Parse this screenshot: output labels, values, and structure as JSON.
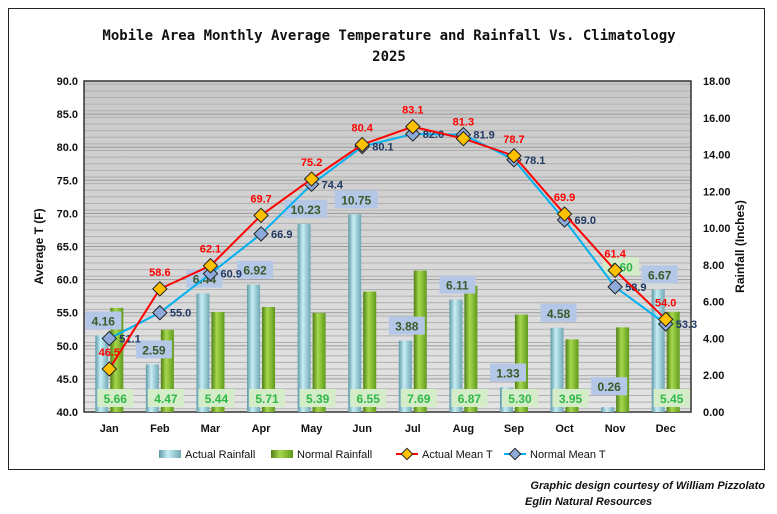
{
  "chart_data": {
    "type": "bar+line",
    "title": "Mobile Area Monthly Average Temperature and Rainfall Vs. Climatology",
    "subtitle": "2025",
    "ylabel": "Average T (F)",
    "y2label": "Rainfall (Inches)",
    "ylim": [
      40,
      90
    ],
    "y2lim": [
      0,
      18
    ],
    "yticks": [
      "40.0",
      "45.0",
      "50.0",
      "55.0",
      "60.0",
      "65.0",
      "70.0",
      "75.0",
      "80.0",
      "85.0",
      "90.0"
    ],
    "y2ticks": [
      "0.00",
      "2.00",
      "4.00",
      "6.00",
      "8.00",
      "10.00",
      "12.00",
      "14.00",
      "16.00",
      "18.00"
    ],
    "categories": [
      "Jan",
      "Feb",
      "Mar",
      "Apr",
      "May",
      "Jun",
      "Jul",
      "Aug",
      "Sep",
      "Oct",
      "Nov",
      "Dec"
    ],
    "grid": true,
    "legend_placement": "bottom",
    "series": [
      {
        "name": "Actual Rainfall",
        "type": "bar",
        "axis": "right",
        "color": "#8fc7d4",
        "values": [
          4.16,
          2.59,
          6.44,
          6.92,
          10.23,
          10.75,
          3.88,
          6.11,
          1.33,
          4.58,
          0.26,
          6.67
        ]
      },
      {
        "name": "Normal Rainfall",
        "type": "bar",
        "axis": "right",
        "color": "#7ab32e",
        "values": [
          5.66,
          4.47,
          5.44,
          5.71,
          5.39,
          6.55,
          7.69,
          6.87,
          5.3,
          3.95,
          4.6,
          5.45
        ]
      },
      {
        "name": "Actual Mean T",
        "type": "line",
        "axis": "left",
        "color": "#ff0000",
        "marker_color": "#ffc000",
        "values": [
          46.5,
          58.6,
          62.1,
          69.7,
          75.2,
          80.4,
          83.1,
          81.3,
          78.7,
          69.9,
          61.4,
          54.0
        ]
      },
      {
        "name": "Normal Mean T",
        "type": "line",
        "axis": "left",
        "color": "#00b0f0",
        "marker_color": "#8eaadb",
        "values": [
          51.1,
          55.0,
          60.9,
          66.9,
          74.4,
          80.1,
          82.0,
          81.9,
          78.1,
          69.0,
          58.9,
          53.3
        ]
      }
    ]
  },
  "credits": [
    "Graphic design courtesy of William Pizzolato",
    "Eglin Natural Resources"
  ]
}
